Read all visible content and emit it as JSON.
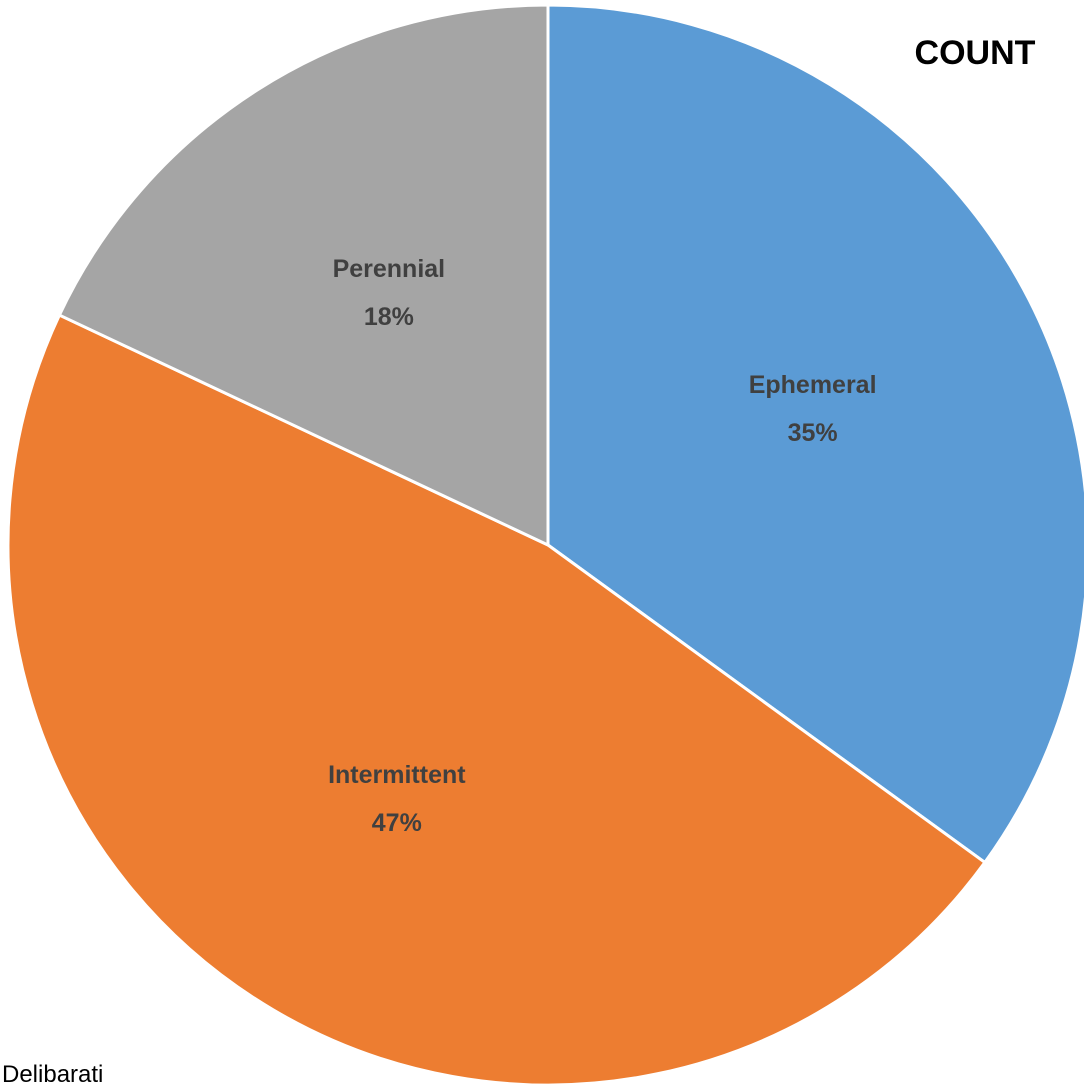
{
  "chart_data": {
    "type": "pie",
    "title": "COUNT",
    "categories": [
      "Ephemeral",
      "Intermittent",
      "Perennial"
    ],
    "values": [
      35,
      47,
      18
    ],
    "value_labels": [
      "35%",
      "47%",
      "18%"
    ],
    "colors": [
      "#5b9bd5",
      "#ed7d31",
      "#a5a5a5"
    ],
    "note": "Delibarati"
  }
}
